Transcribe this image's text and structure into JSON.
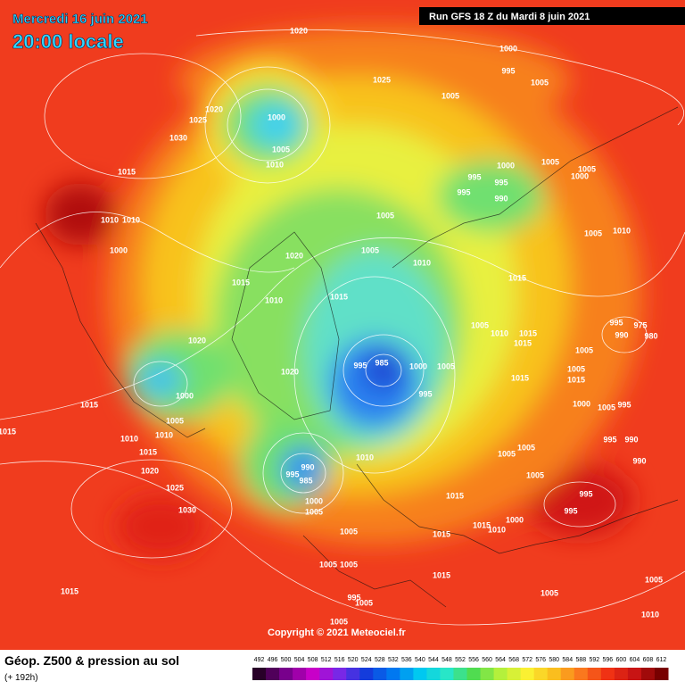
{
  "header": {
    "date": "Mercredi 16 juin 2021",
    "time": "20:00 locale",
    "run": "Run GFS 18 Z du Mardi 8 juin 2021"
  },
  "copyright": "Copyright © 2021 Meteociel.fr",
  "legend": {
    "title": "Géop. Z500 & pression au sol",
    "subtitle": "(+ 192h)",
    "scale": [
      "492",
      "496",
      "500",
      "504",
      "508",
      "512",
      "516",
      "520",
      "524",
      "528",
      "532",
      "536",
      "540",
      "544",
      "548",
      "552",
      "556",
      "560",
      "564",
      "568",
      "572",
      "576",
      "580",
      "584",
      "588",
      "592",
      "596",
      "600",
      "604",
      "608",
      "612"
    ]
  },
  "isobar_labels": [
    "1020",
    "1000",
    "995",
    "1005",
    "1025",
    "1005",
    "1020",
    "1025",
    "1000",
    "1030",
    "1005",
    "1010",
    "1000",
    "1005",
    "1005",
    "1000",
    "995",
    "995",
    "995",
    "990",
    "1015",
    "1005",
    "1010",
    "1010",
    "1000",
    "1005",
    "1010",
    "1005",
    "1020",
    "1010",
    "1015",
    "1015",
    "1010",
    "1015",
    "995",
    "975",
    "990",
    "980",
    "1005",
    "1010",
    "1015",
    "1015",
    "1020",
    "1005",
    "995",
    "985",
    "1000",
    "1005",
    "1005",
    "1015",
    "1015",
    "1020",
    "1000",
    "995",
    "1015",
    "1000",
    "1005",
    "995",
    "1005",
    "1010",
    "1015",
    "1010",
    "995",
    "990",
    "1015",
    "1010",
    "1005",
    "1005",
    "990",
    "995",
    "985",
    "990",
    "1005",
    "1020",
    "1025",
    "1015",
    "995",
    "1000",
    "1005",
    "995",
    "1030",
    "1000",
    "1015",
    "1010",
    "1005",
    "1015",
    "1005",
    "1005",
    "1015",
    "1015",
    "1005",
    "1005",
    "995",
    "1005",
    "1005",
    "1010"
  ]
}
